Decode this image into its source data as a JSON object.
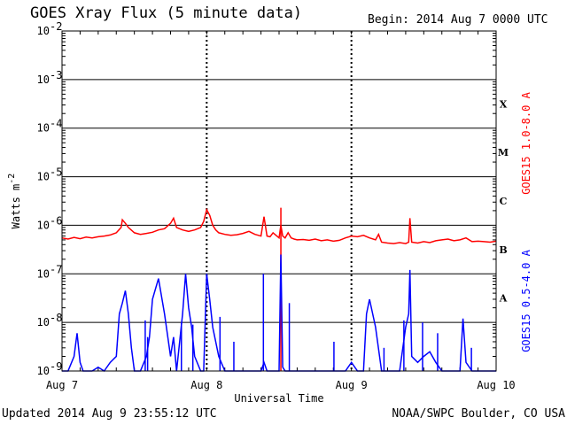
{
  "header": {
    "title": "GOES Xray Flux (5 minute data)",
    "begin": "Begin:  2014 Aug 7 0000 UTC"
  },
  "footer": {
    "updated": "Updated 2014 Aug  9 23:55:12 UTC",
    "credit": "NOAA/SWPC Boulder, CO USA"
  },
  "chart_data": {
    "type": "line",
    "title": "GOES Xray Flux (5 minute data)",
    "xlabel": "Universal Time",
    "ylabel": "Watts m^-2",
    "yscale": "log",
    "ylim": [
      1e-09,
      0.01
    ],
    "xlim": [
      0,
      72
    ],
    "x_unit": "hours since 2014 Aug 7 0000 UTC",
    "x_ticks": [
      {
        "x": 0,
        "label": "Aug 7"
      },
      {
        "x": 24,
        "label": "Aug 8"
      },
      {
        "x": 48,
        "label": "Aug 9"
      },
      {
        "x": 72,
        "label": "Aug 10"
      }
    ],
    "y_ticks": [
      {
        "exp": -2,
        "label": "10",
        "sup": "-2"
      },
      {
        "exp": -3,
        "label": "10",
        "sup": "-3"
      },
      {
        "exp": -4,
        "label": "10",
        "sup": "-4"
      },
      {
        "exp": -5,
        "label": "10",
        "sup": "-5"
      },
      {
        "exp": -6,
        "label": "10",
        "sup": "-6"
      },
      {
        "exp": -7,
        "label": "10",
        "sup": "-7"
      },
      {
        "exp": -8,
        "label": "10",
        "sup": "-8"
      },
      {
        "exp": -9,
        "label": "10",
        "sup": "-9"
      }
    ],
    "flare_classes": [
      {
        "label": "X",
        "exp": -3.5
      },
      {
        "label": "M",
        "exp": -4.5
      },
      {
        "label": "C",
        "exp": -5.5
      },
      {
        "label": "B",
        "exp": -6.5
      },
      {
        "label": "A",
        "exp": -7.5
      }
    ],
    "grid": true,
    "series": [
      {
        "name": "GOES15 1.0-8.0 A",
        "color": "#ff0000",
        "x": [
          0,
          1,
          2,
          3,
          4,
          5,
          6,
          7,
          8,
          9,
          9.8,
          10,
          10.5,
          11,
          12,
          13,
          14,
          15,
          16,
          17,
          18,
          18.5,
          19,
          20,
          21,
          22,
          23,
          23.5,
          24,
          24.5,
          25,
          25.5,
          26,
          27,
          28,
          29,
          30,
          31,
          32,
          33,
          33.5,
          34,
          34.5,
          35,
          36,
          36.3,
          36.6,
          37,
          37.5,
          38,
          38.5,
          39,
          40,
          41,
          42,
          43,
          44,
          45,
          46,
          47,
          48,
          49,
          50,
          51,
          52,
          52.5,
          53,
          54,
          55,
          56,
          57,
          57.5,
          57.7,
          58,
          59,
          60,
          61,
          62,
          63,
          64,
          65,
          66,
          67,
          68,
          69,
          70,
          71,
          72
        ],
        "y": [
          5.5e-07,
          5.2e-07,
          5.6e-07,
          5.3e-07,
          5.7e-07,
          5.5e-07,
          5.8e-07,
          6e-07,
          6.3e-07,
          7e-07,
          9e-07,
          1.3e-06,
          1.1e-06,
          9e-07,
          7e-07,
          6.5e-07,
          6.8e-07,
          7.2e-07,
          8e-07,
          8.5e-07,
          1.1e-06,
          1.4e-06,
          9e-07,
          8e-07,
          7.5e-07,
          8e-07,
          9e-07,
          1.2e-06,
          2.1e-06,
          1.6e-06,
          1e-06,
          8e-07,
          7e-07,
          6.5e-07,
          6.2e-07,
          6.4e-07,
          6.8e-07,
          7.5e-07,
          6.5e-07,
          6e-07,
          1.5e-06,
          6e-07,
          5.8e-07,
          7e-07,
          5.5e-07,
          1e-06,
          6e-07,
          5.5e-07,
          7e-07,
          5.5e-07,
          5.2e-07,
          5e-07,
          5.1e-07,
          4.9e-07,
          5.2e-07,
          4.8e-07,
          5e-07,
          4.7e-07,
          4.9e-07,
          5.5e-07,
          6e-07,
          5.8e-07,
          6.2e-07,
          5.5e-07,
          5e-07,
          6.5e-07,
          4.5e-07,
          4.3e-07,
          4.2e-07,
          4.4e-07,
          4.2e-07,
          4.5e-07,
          1.4e-06,
          4.5e-07,
          4.3e-07,
          4.6e-07,
          4.4e-07,
          4.8e-07,
          5e-07,
          5.2e-07,
          4.8e-07,
          5e-07,
          5.5e-07,
          4.6e-07,
          4.7e-07,
          4.6e-07,
          4.5e-07,
          4.7e-07
        ],
        "spikes": [
          {
            "x": 36.3,
            "y": 2.3e-06
          }
        ]
      },
      {
        "name": "GOES15 0.5-4.0 A",
        "color": "#0000ff",
        "x": [
          0,
          1,
          2,
          2.5,
          3,
          3.5,
          4,
          5,
          6,
          7,
          8,
          9,
          9.5,
          10,
          10.5,
          11,
          11.5,
          12,
          13,
          14,
          14.5,
          15,
          16,
          17,
          18,
          18.5,
          19,
          20,
          20.5,
          21,
          21.5,
          22,
          23,
          23.5,
          24,
          24.5,
          25,
          26,
          27,
          28,
          29,
          30,
          31,
          32,
          32.5,
          33,
          33.5,
          34,
          35,
          35.5,
          36,
          36.3,
          36.6,
          37,
          38,
          39,
          40,
          41,
          42,
          43,
          44,
          45,
          46,
          47,
          48,
          49,
          50,
          50.5,
          51,
          52,
          53,
          54,
          55,
          56,
          57,
          57.5,
          57.7,
          58,
          59,
          60,
          61,
          62,
          63,
          64,
          65,
          66,
          66.5,
          67,
          68,
          69,
          70,
          71,
          72
        ],
        "y": [
          1e-09,
          1e-09,
          2e-09,
          6e-09,
          1.5e-09,
          1e-09,
          1e-09,
          1e-09,
          1.2e-09,
          1e-09,
          1.5e-09,
          2e-09,
          1.5e-08,
          2.5e-08,
          4.5e-08,
          1.5e-08,
          3e-09,
          1e-09,
          1e-09,
          2e-09,
          5e-09,
          3e-08,
          8e-08,
          1.5e-08,
          2e-09,
          5e-09,
          1e-09,
          1.5e-08,
          1e-07,
          2e-08,
          8e-09,
          2e-09,
          1e-09,
          1e-09,
          1e-07,
          3e-08,
          8e-09,
          2e-09,
          1e-09,
          1e-09,
          1e-09,
          1e-09,
          1e-09,
          1e-09,
          1e-09,
          1e-09,
          1.5e-09,
          1e-09,
          1e-09,
          1e-09,
          1e-09,
          2.5e-07,
          1.2e-09,
          1e-09,
          1e-09,
          1e-09,
          1e-09,
          1e-09,
          1e-09,
          1e-09,
          1e-09,
          1e-09,
          1e-09,
          1e-09,
          1.5e-09,
          1e-09,
          1e-09,
          1.5e-08,
          3e-08,
          8e-09,
          1e-09,
          1e-09,
          1e-09,
          1e-09,
          8e-09,
          1.5e-08,
          1.2e-07,
          2e-09,
          1.5e-09,
          2e-09,
          2.5e-09,
          1.5e-09,
          1e-09,
          1e-09,
          1e-09,
          1e-09,
          1.2e-08,
          1.5e-09,
          1e-09,
          1e-09,
          1e-09,
          1e-09,
          1e-09
        ],
        "spikes": [
          {
            "x": 13.8,
            "y": 1.1e-08
          },
          {
            "x": 14.2,
            "y": 5e-09
          },
          {
            "x": 19.8,
            "y": 1e-08
          },
          {
            "x": 21.7,
            "y": 9e-09
          },
          {
            "x": 26.2,
            "y": 1.3e-08
          },
          {
            "x": 28.5,
            "y": 4e-09
          },
          {
            "x": 33.4,
            "y": 1e-07
          },
          {
            "x": 37.7,
            "y": 2.5e-08
          },
          {
            "x": 45.1,
            "y": 4e-09
          },
          {
            "x": 53.4,
            "y": 3e-09
          },
          {
            "x": 56.7,
            "y": 1.1e-08
          },
          {
            "x": 59.8,
            "y": 1e-08
          },
          {
            "x": 62.3,
            "y": 6e-09
          },
          {
            "x": 67.9,
            "y": 3e-09
          }
        ]
      }
    ]
  }
}
